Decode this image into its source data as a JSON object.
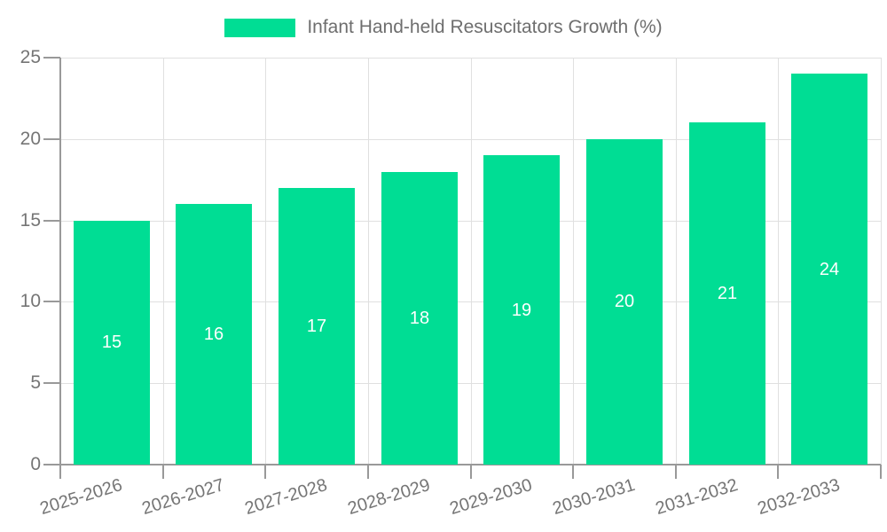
{
  "legend": {
    "label": "Infant Hand-held Resuscitators Growth (%)"
  },
  "chart_data": {
    "type": "bar",
    "title": "Infant Hand-held Resuscitators Growth (%)",
    "categories": [
      "2025-2026",
      "2026-2027",
      "2027-2028",
      "2028-2029",
      "2029-2030",
      "2030-2031",
      "2031-2032",
      "2032-2033"
    ],
    "values": [
      15,
      16,
      17,
      18,
      19,
      20,
      21,
      24
    ],
    "series": [
      {
        "name": "Infant Hand-held Resuscitators Growth (%)",
        "values": [
          15,
          16,
          17,
          18,
          19,
          20,
          21,
          24
        ]
      }
    ],
    "value_labels_shown": true,
    "xlabel": "",
    "ylabel": "",
    "ylim": [
      0,
      25
    ],
    "yticks": [
      0,
      5,
      10,
      15,
      20,
      25
    ],
    "grid": true,
    "legend_position": "top",
    "bar_color": "#00DD94",
    "value_label_color": "#FFFFFF",
    "grid_color": "#E0E0E0",
    "axis_color": "#999999",
    "tick_label_color": "#757575",
    "legend_text_color": "#6E6E6E",
    "background_color": "#FFFFFF"
  }
}
